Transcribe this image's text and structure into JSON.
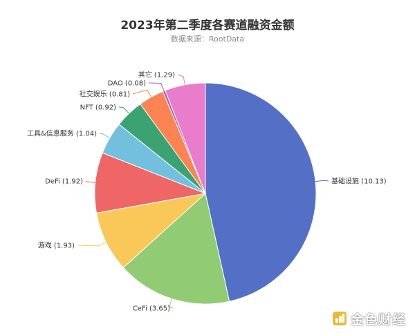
{
  "chart_data": {
    "type": "pie",
    "title": "2023年第二季度各赛道融资金额",
    "subtitle": "数据来源：RootData",
    "categories": [
      "基础设施",
      "CeFi",
      "游戏",
      "DeFi",
      "工具&信息服务",
      "NFT",
      "社交娱乐",
      "DAO",
      "其它"
    ],
    "values": [
      10.13,
      3.65,
      1.93,
      1.92,
      1.04,
      0.92,
      0.81,
      0.08,
      1.29
    ],
    "labels": [
      "基础设施 (10.13)",
      "CeFi (3.65)",
      "游戏 (1.93)",
      "DeFi (1.92)",
      "工具&信息服务 (1.04)",
      "NFT (0.92)",
      "社交娱乐 (0.81)",
      "DAO (0.08)",
      "其它 (1.29)"
    ],
    "colors": [
      "#5470c6",
      "#91cc75",
      "#fac858",
      "#ee6666",
      "#73c0de",
      "#3ba272",
      "#fc8452",
      "#9a60b4",
      "#ea7ccc"
    ],
    "start": "12 o'clock",
    "direction": "clockwise",
    "legend": "none"
  },
  "watermark": {
    "text": "金色财经"
  }
}
